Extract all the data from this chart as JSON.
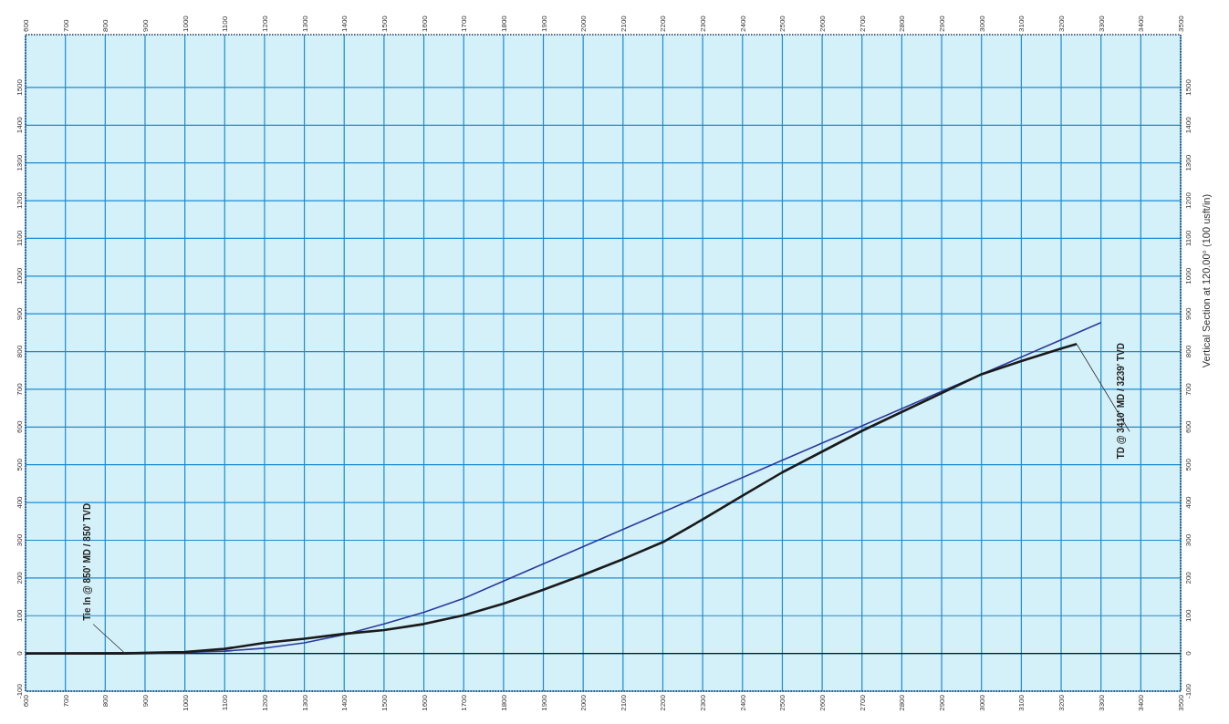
{
  "chart_data": {
    "type": "line",
    "y2label": "Vertical Section at 120.00° (100 usft/in)",
    "series": [
      {
        "color": "#2b3a9c",
        "x": [
          600,
          1000,
          1100,
          1200,
          1300,
          1400,
          1500,
          1600,
          1700,
          1800,
          2000,
          2500,
          3000,
          3300
        ],
        "values": [
          0,
          3,
          6,
          14,
          28,
          50,
          78,
          109,
          146,
          192,
          283,
          512,
          740,
          877
        ]
      },
      {
        "color": "#1a1a1a",
        "x": [
          600,
          850,
          1000,
          1100,
          1200,
          1300,
          1400,
          1500,
          1600,
          1700,
          1800,
          1900,
          2000,
          2100,
          2200,
          2300,
          2400,
          2500,
          2600,
          2700,
          2800,
          2900,
          3000,
          3100,
          3200,
          3239
        ],
        "values": [
          0,
          0,
          4,
          12,
          28,
          39,
          52,
          62,
          78,
          101,
          132,
          169,
          208,
          250,
          295,
          355,
          418,
          480,
          535,
          590,
          640,
          690,
          740,
          775,
          808,
          820
        ]
      }
    ],
    "xlim": [
      600,
      3500
    ],
    "xticks": [
      600,
      700,
      800,
      900,
      1000,
      1100,
      1200,
      1300,
      1400,
      1500,
      1600,
      1700,
      1800,
      1900,
      2000,
      2100,
      2200,
      2300,
      2400,
      2500,
      2600,
      2700,
      2800,
      2900,
      3000,
      3100,
      3200,
      3300,
      3400,
      3500
    ],
    "x2lim": [
      600,
      3500
    ],
    "x2ticks": [
      600,
      700,
      800,
      900,
      1000,
      1100,
      1200,
      1300,
      1400,
      1500,
      1600,
      1700,
      1800,
      1900,
      2000,
      2100,
      2200,
      2300,
      2400,
      2500,
      2600,
      2700,
      2800,
      2900,
      3000,
      3100,
      3200,
      3300,
      3400,
      3500
    ],
    "ylim": [
      -100,
      1640
    ],
    "yticks": [
      -100,
      0,
      100,
      200,
      300,
      400,
      500,
      600,
      700,
      800,
      900,
      1000,
      1100,
      1200,
      1300,
      1400,
      1500
    ],
    "y2lim": [
      -100,
      1640
    ],
    "y2ticks": [
      -100,
      0,
      100,
      200,
      300,
      400,
      500,
      600,
      700,
      800,
      900,
      1000,
      1100,
      1200,
      1300,
      1400,
      1500
    ],
    "ref_lines": [
      {
        "axis": "y",
        "value": 0,
        "color": "#1a1a1a"
      }
    ],
    "annotations": [
      {
        "text": "Tie In @ 850' MD / 850' TVD",
        "x": 850,
        "y": 0
      },
      {
        "text": "TD @ 3410' MD / 3239' TVD",
        "x": 3239,
        "y": 820
      }
    ],
    "grid": true,
    "line_style": "solid"
  }
}
